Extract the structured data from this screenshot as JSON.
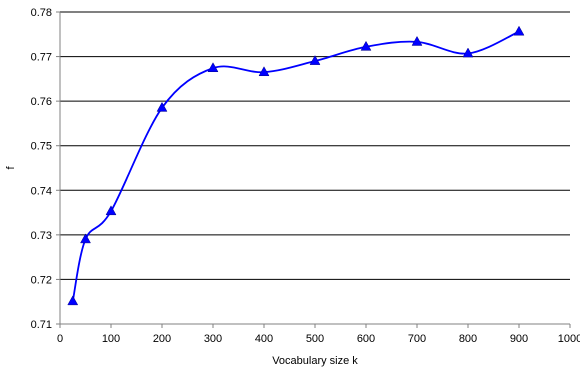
{
  "chart_data": {
    "type": "line",
    "title": "",
    "xlabel": "Vocabulary size k",
    "ylabel": "f",
    "xlim": [
      0,
      1000
    ],
    "ylim": [
      0.71,
      0.78
    ],
    "x_ticks": [
      0,
      100,
      200,
      300,
      400,
      500,
      600,
      700,
      800,
      900,
      1000
    ],
    "x_tick_labels": [
      "0",
      "100",
      "200",
      "300",
      "400",
      "500",
      "600",
      "700",
      "800",
      "900",
      "1000"
    ],
    "y_ticks": [
      0.71,
      0.72,
      0.73,
      0.74,
      0.75,
      0.76,
      0.77,
      0.78
    ],
    "y_tick_labels": [
      "0.71",
      "0.72",
      "0.73",
      "0.74",
      "0.75",
      "0.76",
      "0.77",
      "0.78"
    ],
    "grid": "horizontal",
    "legend": "none",
    "series": [
      {
        "color": "#0000ff",
        "marker": "triangle",
        "smooth": true,
        "x": [
          25,
          50,
          100,
          200,
          300,
          400,
          500,
          600,
          700,
          800,
          900
        ],
        "y": [
          0.7151,
          0.729,
          0.7353,
          0.7585,
          0.7674,
          0.7665,
          0.769,
          0.7722,
          0.7733,
          0.7707,
          0.7756
        ]
      }
    ]
  }
}
